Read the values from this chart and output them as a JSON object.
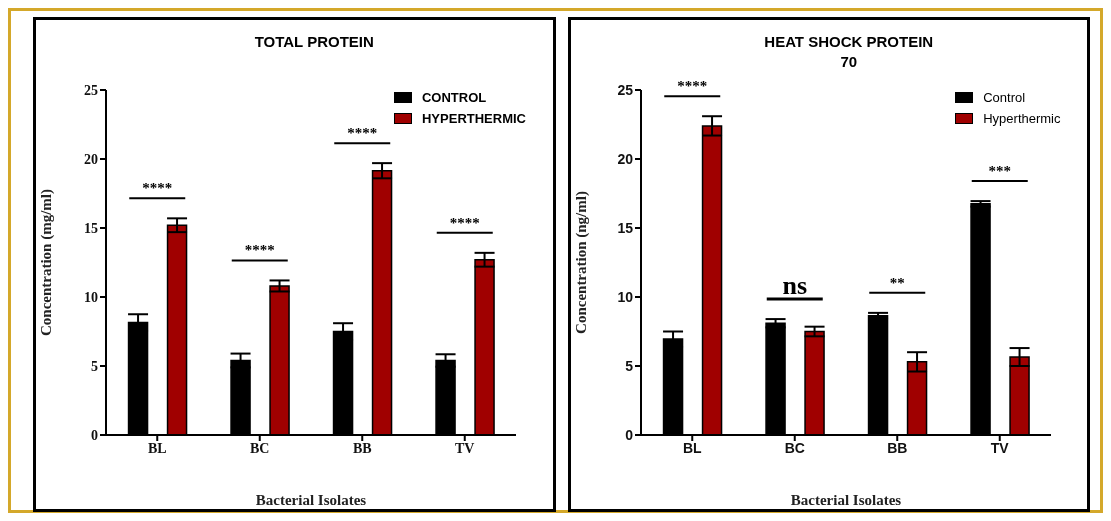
{
  "chart_data": [
    {
      "type": "bar",
      "title": "TOTAL PROTEIN",
      "xlabel": "Bacterial Isolates",
      "ylabel": "Concentration (mg/ml)",
      "categories": [
        "BL",
        "BC",
        "BB",
        "TV"
      ],
      "series": [
        {
          "name": "CONTROL",
          "color": "#000000",
          "values": [
            8.15,
            5.4,
            7.5,
            5.4
          ],
          "errors": [
            0.6,
            0.5,
            0.6,
            0.45
          ]
        },
        {
          "name": "HYPERTHERMIC",
          "color": "#a00000",
          "values": [
            15.2,
            10.8,
            19.15,
            12.7
          ],
          "errors": [
            0.5,
            0.4,
            0.55,
            0.5
          ]
        }
      ],
      "ylim": [
        0,
        25
      ],
      "yticks": [
        0,
        5,
        10,
        15,
        20,
        25
      ],
      "legend": "top right",
      "annotations": [
        "****",
        "****",
        "****",
        "****"
      ]
    },
    {
      "type": "bar",
      "title": "HEAT SHOCK PROTEIN 70",
      "xlabel": "Bacterial Isolates",
      "ylabel": "Concentration (ng/ml)",
      "categories": [
        "BL",
        "BC",
        "BB",
        "TV"
      ],
      "series": [
        {
          "name": "Control",
          "color": "#000000",
          "values": [
            6.95,
            8.1,
            8.65,
            16.75
          ],
          "errors": [
            0.55,
            0.3,
            0.2,
            0.2
          ]
        },
        {
          "name": "Hyperthermic",
          "color": "#a00000",
          "values": [
            22.4,
            7.5,
            5.3,
            5.65
          ],
          "errors": [
            0.7,
            0.35,
            0.7,
            0.65
          ]
        }
      ],
      "ylim": [
        0,
        25
      ],
      "yticks": [
        0,
        5,
        10,
        15,
        20,
        25
      ],
      "legend": "top right",
      "annotations": [
        "****",
        "ns",
        "**",
        "***"
      ]
    }
  ]
}
